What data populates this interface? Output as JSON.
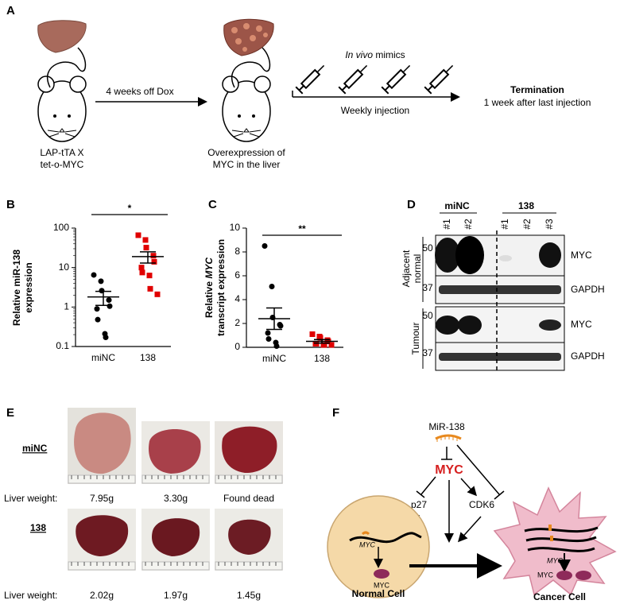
{
  "panel_labels": [
    "A",
    "B",
    "C",
    "D",
    "E",
    "F"
  ],
  "panel_a": {
    "model_line1": "LAP-tTA X",
    "model_line2": "tet-o-MYC",
    "step1": "4 weeks off Dox",
    "result_line1": "Overexpression of",
    "result_line2": "MYC in the liver",
    "treatment": [
      "In vivo",
      "mimics"
    ],
    "schedule": "Weekly injection",
    "endpoint": "Termination",
    "endpoint_detail": "1 week after last injection"
  },
  "chart_data": [
    {
      "type": "scatter",
      "ylabel": [
        "Relative miR-138",
        "expression"
      ],
      "categories": [
        "miNC",
        "138"
      ],
      "values": [
        [
          6.5,
          4.5,
          2.6,
          1.5,
          1.05,
          0.9,
          0.48,
          0.21,
          0.17
        ],
        [
          66,
          50,
          32,
          20,
          14,
          10,
          7.5,
          6.3,
          2.9,
          2.1
        ]
      ],
      "means": [
        1.8,
        19
      ],
      "sems": [
        0.7,
        6
      ],
      "colors": [
        "#000000",
        "#e00000"
      ],
      "markers": [
        "circle",
        "square"
      ],
      "log_scale": true,
      "ylim": [
        0.1,
        100
      ],
      "yticks": [
        0.1,
        1,
        10,
        100
      ],
      "significance": "*"
    },
    {
      "type": "scatter",
      "ylabel": [
        "Relative",
        "MYC",
        "transcript expression"
      ],
      "categories": [
        "miNC",
        "138"
      ],
      "values": [
        [
          8.5,
          5.1,
          2.5,
          1.9,
          1.8,
          1.2,
          0.7,
          0.4,
          0.1
        ],
        [
          1.1,
          0.9,
          0.8,
          0.6,
          0.5,
          0.3,
          0.3,
          0.2,
          0.2,
          0.2
        ]
      ],
      "means": [
        2.4,
        0.5
      ],
      "sems": [
        0.9,
        0.15
      ],
      "colors": [
        "#000000",
        "#e00000"
      ],
      "markers": [
        "circle",
        "square"
      ],
      "log_scale": false,
      "ylim": [
        0,
        10
      ],
      "yticks": [
        0,
        2,
        4,
        6,
        8,
        10
      ],
      "significance": "**"
    }
  ],
  "panel_d": {
    "groups": [
      "miNC",
      "138"
    ],
    "lanes": [
      "#1",
      "#2",
      "#1",
      "#2",
      "#3"
    ],
    "adjacent": [
      "Adjacent",
      "normal"
    ],
    "tumour": "Tumour",
    "markers": [
      50,
      37,
      50,
      37
    ],
    "proteins": [
      "MYC",
      "GAPDH",
      "MYC",
      "GAPDH"
    ]
  },
  "panel_e": {
    "groups": [
      "miNC",
      "138"
    ],
    "weight_label": "Liver weight:",
    "weights": [
      [
        "7.95g",
        "3.30g",
        "Found dead"
      ],
      [
        "2.02g",
        "1.97g",
        "1.45g"
      ]
    ]
  },
  "panel_f": {
    "mirna": "MiR-138",
    "oncogene": "MYC",
    "targets": [
      "p27",
      "CDK6"
    ],
    "gene_labels": [
      "MYC",
      "MYC"
    ],
    "protein_labels": [
      "MYC",
      "MYC"
    ],
    "cells": [
      "Normal Cell",
      "Cancer Cell"
    ]
  }
}
